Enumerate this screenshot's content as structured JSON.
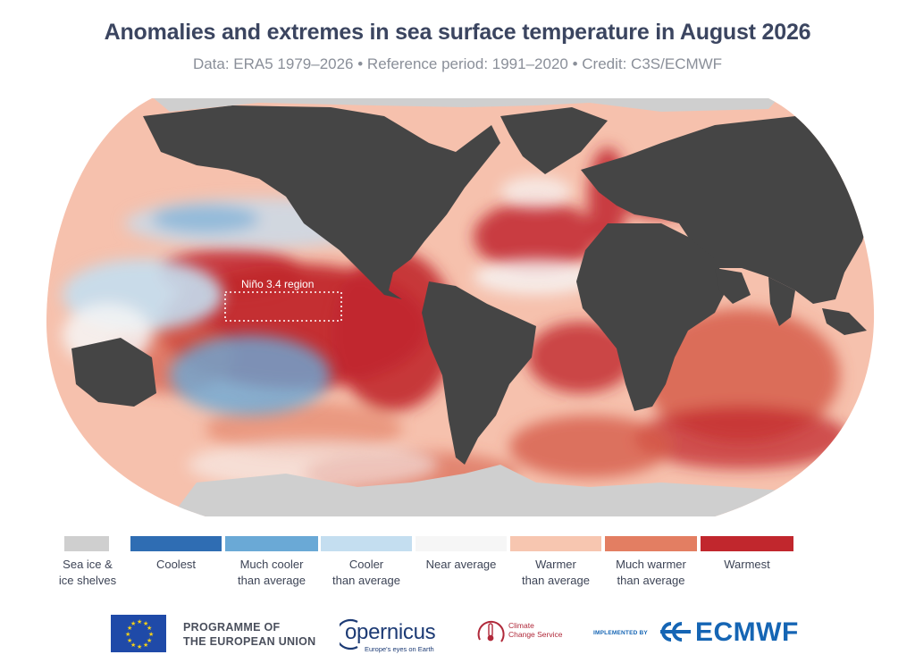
{
  "title": "Anomalies and extremes in sea surface temperature in August 2026",
  "subtitle": "Data: ERA5 1979–2026 • Reference period: 1991–2020 • Credit: C3S/ECMWF",
  "map": {
    "projection": "Robinson",
    "annotation": "Niño 3.4 region",
    "colors": {
      "ocean_base": "#f6c1ad",
      "land": "#454545",
      "ice": "#cfcfcf"
    }
  },
  "legend": {
    "items": [
      {
        "label": "Sea ice &",
        "label2": "ice shelves",
        "color": "#cfcfcf"
      },
      {
        "label": "Coolest",
        "label2": "",
        "color": "#2f6db3"
      },
      {
        "label": "Much cooler",
        "label2": "than average",
        "color": "#6aa9d6"
      },
      {
        "label": "Cooler",
        "label2": "than average",
        "color": "#c4def0"
      },
      {
        "label": "Near average",
        "label2": "",
        "color": "#f6f6f6"
      },
      {
        "label": "Warmer",
        "label2": "than average",
        "color": "#f7c6b0"
      },
      {
        "label": "Much warmer",
        "label2": "than average",
        "color": "#e37e62"
      },
      {
        "label": "Warmest",
        "label2": "",
        "color": "#c1272d"
      }
    ]
  },
  "footer": {
    "eu_line1": "PROGRAMME OF",
    "eu_line2": "THE EUROPEAN UNION",
    "copernicus": "opernicus",
    "copernicus_tag": "Europe's eyes on Earth",
    "c3s_line1": "Climate",
    "c3s_line2": "Change Service",
    "implemented_by": "IMPLEMENTED BY",
    "ecmwf": "ECMWF"
  }
}
